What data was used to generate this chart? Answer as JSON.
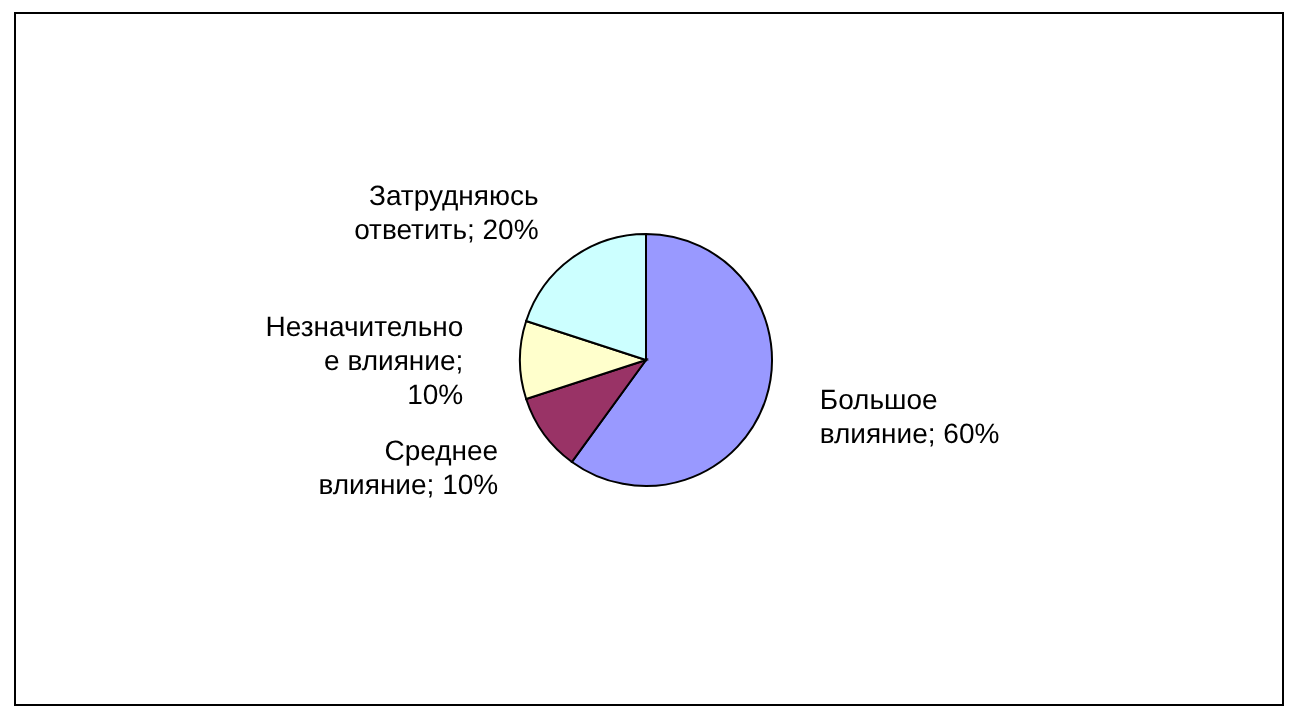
{
  "chart_data": {
    "type": "pie",
    "categories": [
      "Большое влияние",
      "Среднее влияние",
      "Незначительное влияние",
      "Затрудняюсь ответить"
    ],
    "values": [
      60,
      10,
      10,
      20
    ],
    "colors": [
      "#9999ff",
      "#993366",
      "#ffffcc",
      "#ccffff"
    ],
    "value_labels": [
      "; 60%",
      "; 10%",
      "; 10%",
      "; 20%"
    ]
  }
}
